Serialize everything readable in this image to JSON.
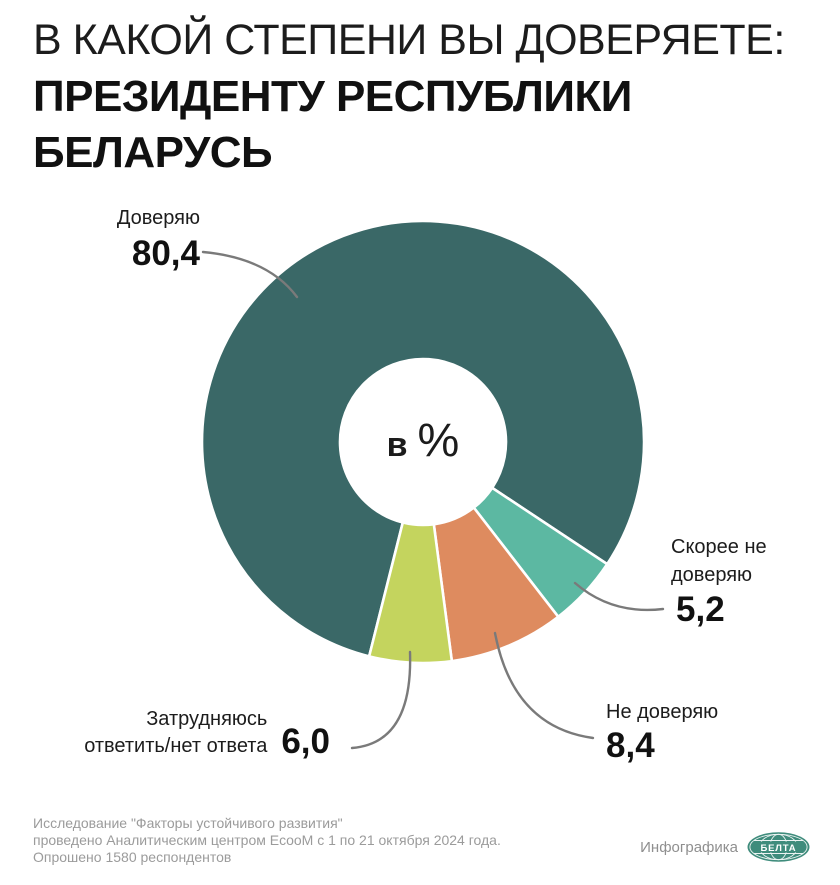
{
  "header": {
    "title_line1": "В КАКОЙ СТЕПЕНИ ВЫ ДОВЕРЯЕТЕ:",
    "title_line2": "ПРЕЗИДЕНТУ РЕСПУБЛИКИ",
    "title_line3": "БЕЛАРУСЬ"
  },
  "chart_data": {
    "type": "pie",
    "subtype": "donut",
    "title": "В какой степени вы доверяете: Президенту Республики Беларусь",
    "center_label": {
      "text": "в %",
      "prefix": "в",
      "symbol": "%"
    },
    "rotation_deg": 194.1,
    "legend_position": "callouts",
    "separator_color": "#FFFFFF",
    "leader_line_color": "#7A7A7A",
    "slices": [
      {
        "name": "trust",
        "label": "Доверяю",
        "label_lines": [
          "Доверяю"
        ],
        "value": 80.4,
        "value_text": "80,4",
        "color": "#3A6867"
      },
      {
        "name": "rather-not-trust",
        "label": "Скорее не доверяю",
        "label_lines": [
          "Скорее не",
          "доверяю"
        ],
        "value": 5.2,
        "value_text": "5,2",
        "color": "#5CB8A2"
      },
      {
        "name": "not-trust",
        "label": "Не доверяю",
        "label_lines": [
          "Не доверяю"
        ],
        "value": 8.4,
        "value_text": "8,4",
        "color": "#DE8B5F"
      },
      {
        "name": "undecided",
        "label": "Затрудняюсь ответить/нет ответа",
        "label_lines": [
          "Затрудняюсь",
          "ответить/нет ответа"
        ],
        "value": 6.0,
        "value_text": "6,0",
        "color": "#C4D45E"
      }
    ]
  },
  "footer": {
    "source_line1": "Исследование \"Факторы устойчивого развития\"",
    "source_line2": "проведено Аналитическим центром EcooM с 1 по 21 октября 2024 года.",
    "source_line3": "Опрошено 1580 респондентов",
    "credit_label": "Инфографика",
    "logo_text": "БЕЛТА",
    "logo_color": "#3F8C7C"
  }
}
